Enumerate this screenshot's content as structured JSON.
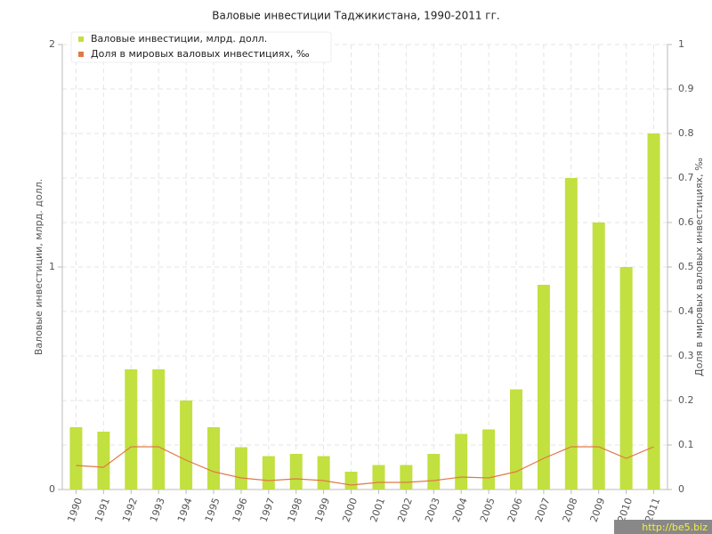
{
  "chart_data": {
    "type": "bar",
    "title": "Валовые инвестиции Таджикистана, 1990-2011 гг.",
    "y_label": "Валовые инвестиции, млрд. долл.",
    "y2_label": "Доля в мировых валовых инвестициях, ‰",
    "categories": [
      "1990",
      "1991",
      "1992",
      "1993",
      "1994",
      "1995",
      "1996",
      "1997",
      "1998",
      "1999",
      "2000",
      "2001",
      "2002",
      "2003",
      "2004",
      "2005",
      "2006",
      "2007",
      "2008",
      "2009",
      "2010",
      "2011"
    ],
    "series": [
      {
        "name": "Валовые инвестиции, млрд. долл.",
        "type": "bar",
        "color": "#c2e03f",
        "values": [
          0.28,
          0.26,
          0.54,
          0.54,
          0.4,
          0.28,
          0.19,
          0.15,
          0.16,
          0.15,
          0.08,
          0.11,
          0.11,
          0.16,
          0.25,
          0.27,
          0.45,
          0.92,
          1.4,
          1.2,
          1.0,
          1.6
        ]
      },
      {
        "name": "Доля в мировых валовых инвестициях, ‰",
        "type": "line",
        "axis": "y2",
        "color": "#e07a45",
        "values": [
          0.054,
          0.05,
          0.096,
          0.096,
          0.066,
          0.04,
          0.026,
          0.02,
          0.024,
          0.02,
          0.01,
          0.016,
          0.016,
          0.02,
          0.028,
          0.026,
          0.04,
          0.07,
          0.096,
          0.096,
          0.07,
          0.096
        ]
      }
    ],
    "ylim": [
      0,
      2
    ],
    "yticks": [
      0,
      1,
      2
    ],
    "y2lim": [
      0,
      1
    ],
    "y2ticks": [
      0,
      0.1,
      0.2,
      0.3,
      0.4,
      0.5,
      0.6,
      0.7,
      0.8,
      0.9,
      1
    ],
    "grid": true,
    "legend": "top-left",
    "watermark": "http://be5.biz"
  }
}
